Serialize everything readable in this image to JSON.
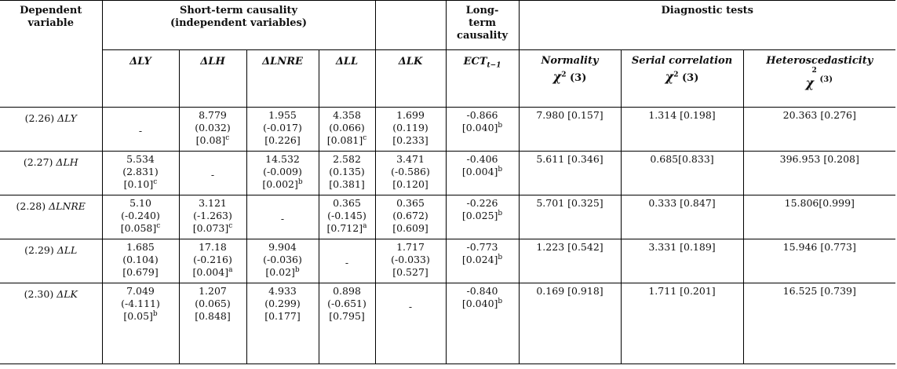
{
  "header": {
    "dependent": "Dependent variable",
    "short_term_1": "Short-term causality",
    "short_term_2": "(independent variables)",
    "long_term_1": "Long-",
    "long_term_2": "term",
    "long_term_3": "causality",
    "diagnostic": "Diagnostic tests"
  },
  "subheaders": {
    "dly": "ΔLY",
    "dlh": "ΔLH",
    "dlnre": "ΔLNRE",
    "dll": "ΔLL",
    "dlk": "ΔLK",
    "ect_base": "ECT",
    "ect_sub": "t−1",
    "normality": "Normality",
    "normality_chi": "χ",
    "normality_sq": "2",
    "normality_df": "(3)",
    "serial": "Serial correlation",
    "serial_chi": "χ",
    "serial_sq": "2",
    "serial_df": "(3)",
    "hetero": "Heteroscedasticity",
    "hetero_chi": "χ",
    "hetero_sq": "2",
    "hetero_df": "(3)"
  },
  "rows": [
    {
      "eq": "(2.26)",
      "var": "ΔLY",
      "dly": {
        "a": "-",
        "b": "",
        "c": "",
        "s": ""
      },
      "dlh": {
        "a": "8.779",
        "b": "(0.032)",
        "c": "[0.08]",
        "s": "c"
      },
      "dlnre": {
        "a": "1.955",
        "b": "(-0.017)",
        "c": "[0.226]",
        "s": ""
      },
      "dll": {
        "a": "4.358",
        "b": "(0.066)",
        "c": "[0.081]",
        "s": "c"
      },
      "dlk": {
        "a": "1.699",
        "b": "(0.119)",
        "c": "[0.233]",
        "s": ""
      },
      "ect": {
        "a": "-0.866",
        "c": "[0.040]",
        "s": "b"
      },
      "normality": "7.980 [0.157]",
      "serial": "1.314 [0.198]",
      "hetero": "20.363 [0.276]"
    },
    {
      "eq": "(2.27)",
      "var": "ΔLH",
      "dly": {
        "a": "5.534",
        "b": "(2.831)",
        "c": "[0.10]",
        "s": "c"
      },
      "dlh": {
        "a": "-",
        "b": "",
        "c": "",
        "s": ""
      },
      "dlnre": {
        "a": "14.532",
        "b": "(-0.009)",
        "c": "[0.002]",
        "s": "b"
      },
      "dll": {
        "a": "2.582",
        "b": "(0.135)",
        "c": "[0.381]",
        "s": ""
      },
      "dlk": {
        "a": "3.471",
        "b": "(-0.586)",
        "c": "[0.120]",
        "s": ""
      },
      "ect": {
        "a": "-0.406",
        "c": "[0.004]",
        "s": "b"
      },
      "normality": "5.611 [0.346]",
      "serial": "0.685[0.833]",
      "hetero": "396.953 [0.208]"
    },
    {
      "eq": "(2.28)",
      "var": "ΔLNRE",
      "dly": {
        "a": "5.10",
        "b": "(-0.240)",
        "c": "[0.058]",
        "s": "c"
      },
      "dlh": {
        "a": "3.121",
        "b": "(-1.263)",
        "c": "[0.073]",
        "s": "c"
      },
      "dlnre": {
        "a": "-",
        "b": "",
        "c": "",
        "s": ""
      },
      "dll": {
        "a": "0.365",
        "b": "(-0.145)",
        "c": "[0.712]",
        "s": "a"
      },
      "dlk": {
        "a": "0.365",
        "b": "(0.672)",
        "c": "[0.609]",
        "s": ""
      },
      "ect": {
        "a": "-0.226",
        "c": "[0.025]",
        "s": "b"
      },
      "normality": "5.701 [0.325]",
      "serial": "0.333 [0.847]",
      "hetero": "15.806[0.999]"
    },
    {
      "eq": "(2.29)",
      "var": "ΔLL",
      "dly": {
        "a": "1.685",
        "b": "(0.104)",
        "c": "[0.679]",
        "s": ""
      },
      "dlh": {
        "a": "17.18",
        "b": "(-0.216)",
        "c": "[0.004]",
        "s": "a"
      },
      "dlnre": {
        "a": "9.904",
        "b": "(-0.036)",
        "c": "[0.02]",
        "s": "b"
      },
      "dll": {
        "a": "-",
        "b": "",
        "c": "",
        "s": ""
      },
      "dlk": {
        "a": "1.717",
        "b": "(-0.033)",
        "c": "[0.527]",
        "s": ""
      },
      "ect": {
        "a": "-0.773",
        "c": "[0.024]",
        "s": "b"
      },
      "normality": "1.223 [0.542]",
      "serial": "3.331 [0.189]",
      "hetero": "15.946 [0.773]"
    },
    {
      "eq": "(2.30)",
      "var": "ΔLK",
      "dly": {
        "a": "7.049",
        "b": "(-4.111)",
        "c": "[0.05]",
        "s": "b"
      },
      "dlh": {
        "a": "1.207",
        "b": "(0.065)",
        "c": "[0.848]",
        "s": ""
      },
      "dlnre": {
        "a": "4.933",
        "b": "(0.299)",
        "c": "[0.177]",
        "s": ""
      },
      "dll": {
        "a": "0.898",
        "b": "(-0.651)",
        "c": "[0.795]",
        "s": ""
      },
      "dlk": {
        "a": "-",
        "b": "",
        "c": "",
        "s": ""
      },
      "ect": {
        "a": "-0.840",
        "c": "[0.040]",
        "s": "b"
      },
      "normality": "0.169 [0.918]",
      "serial": "1.711 [0.201]",
      "hetero": "16.525 [0.739]"
    }
  ]
}
